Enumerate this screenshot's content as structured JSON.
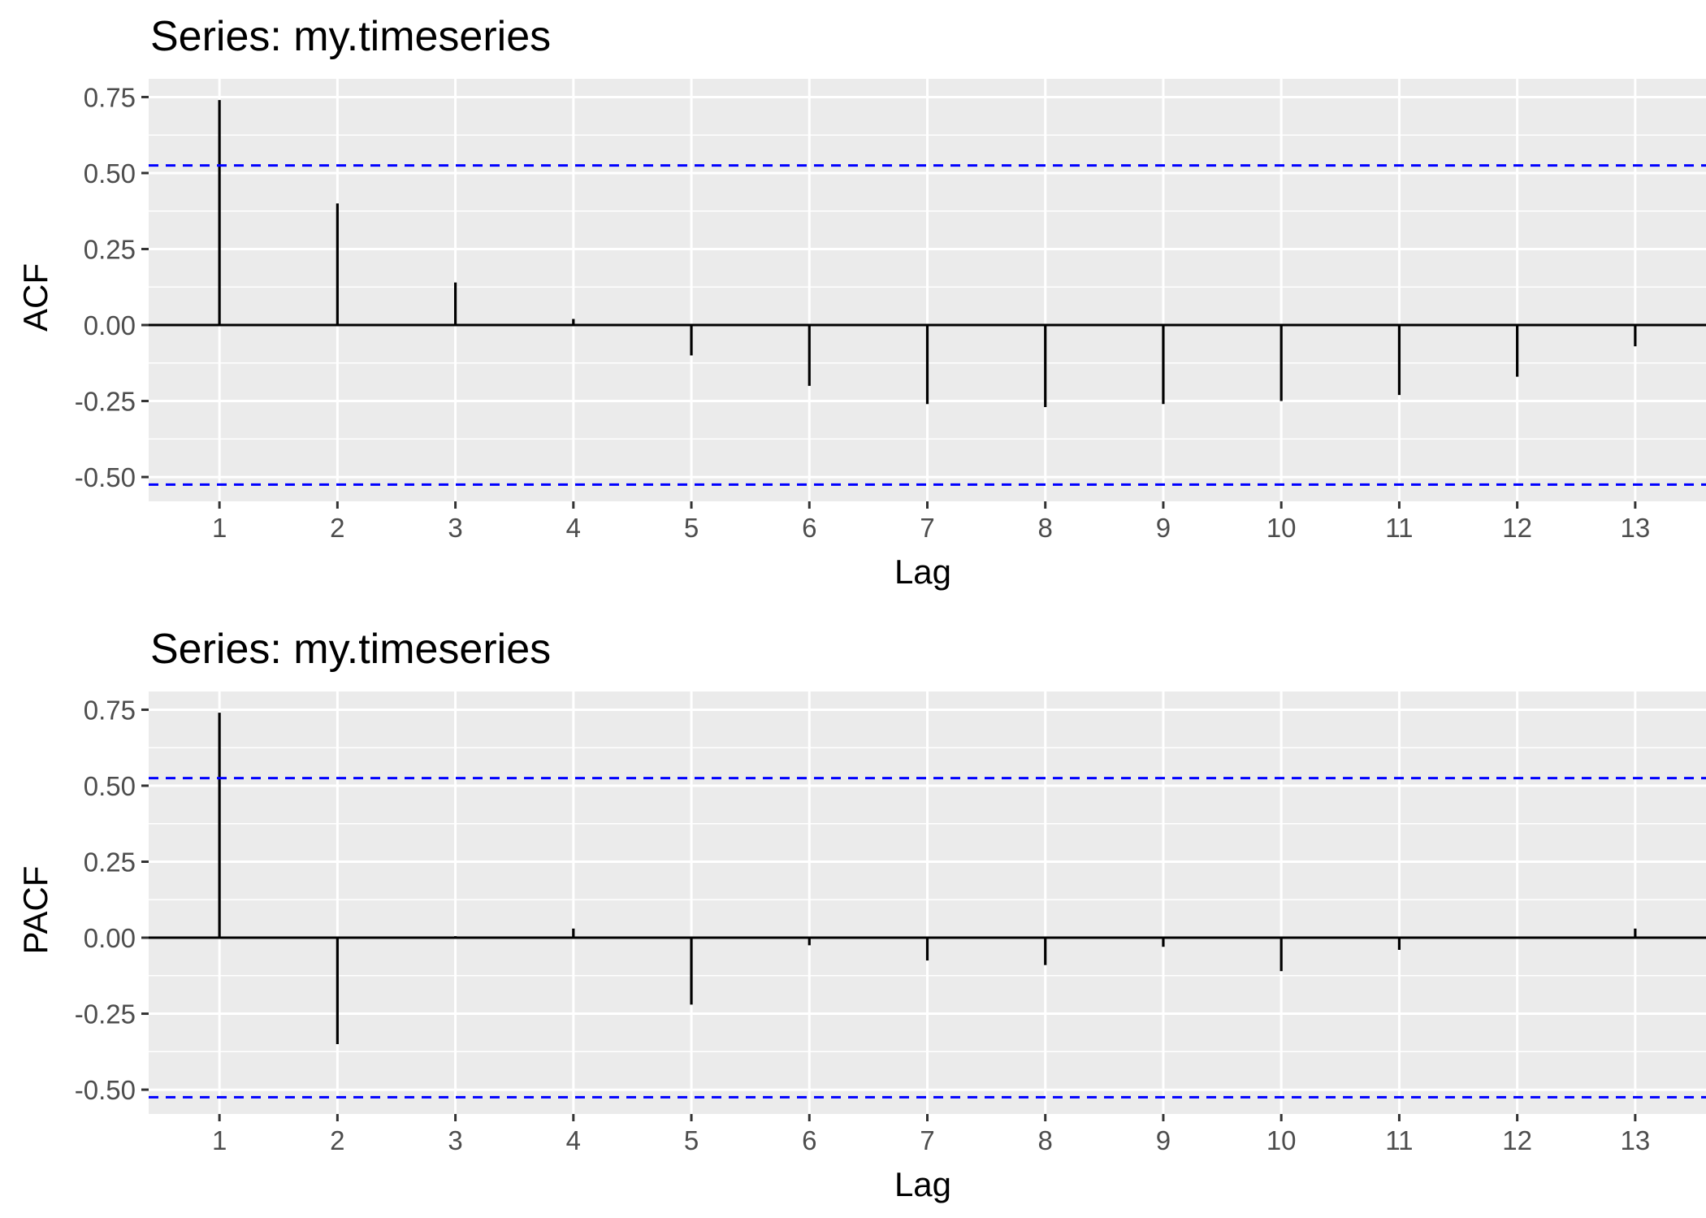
{
  "colors": {
    "panel_background": "#ebebeb",
    "grid": "#ffffff",
    "bars": "#000000",
    "confidence_band": "#0000ff",
    "tick_label": "#4d4d4d",
    "text": "#000000"
  },
  "chart_data": [
    {
      "type": "bar",
      "title": "Series: my.timeseries",
      "xlabel": "Lag",
      "ylabel": "ACF",
      "x": [
        1,
        2,
        3,
        4,
        5,
        6,
        7,
        8,
        9,
        10,
        11,
        12,
        13
      ],
      "x_ticks": [
        "1",
        "2",
        "3",
        "4",
        "5",
        "6",
        "7",
        "8",
        "9",
        "10",
        "11",
        "12",
        "13"
      ],
      "values": [
        0.74,
        0.4,
        0.14,
        0.02,
        -0.1,
        -0.2,
        -0.26,
        -0.27,
        -0.26,
        -0.25,
        -0.23,
        -0.17,
        -0.07
      ],
      "y_ticks": [
        "0.75",
        "0.50",
        "0.25",
        "0.00",
        "-0.25",
        "-0.50"
      ],
      "y_tick_values": [
        0.75,
        0.5,
        0.25,
        0.0,
        -0.25,
        -0.5
      ],
      "ylim": [
        -0.58,
        0.81
      ],
      "xlim": [
        0.4,
        13.6
      ],
      "confidence_limits": [
        0.525,
        -0.525
      ],
      "grid": true
    },
    {
      "type": "bar",
      "title": "Series: my.timeseries",
      "xlabel": "Lag",
      "ylabel": "PACF",
      "x": [
        1,
        2,
        3,
        4,
        5,
        6,
        7,
        8,
        9,
        10,
        11,
        12,
        13
      ],
      "x_ticks": [
        "1",
        "2",
        "3",
        "4",
        "5",
        "6",
        "7",
        "8",
        "9",
        "10",
        "11",
        "12",
        "13"
      ],
      "values": [
        0.74,
        -0.35,
        0.005,
        0.03,
        -0.22,
        -0.025,
        -0.075,
        -0.09,
        -0.03,
        -0.11,
        -0.04,
        0.0,
        0.03
      ],
      "y_ticks": [
        "0.75",
        "0.50",
        "0.25",
        "0.00",
        "-0.25",
        "-0.50"
      ],
      "y_tick_values": [
        0.75,
        0.5,
        0.25,
        0.0,
        -0.25,
        -0.5
      ],
      "ylim": [
        -0.58,
        0.81
      ],
      "xlim": [
        0.4,
        13.6
      ],
      "confidence_limits": [
        0.525,
        -0.525
      ],
      "grid": true
    }
  ]
}
